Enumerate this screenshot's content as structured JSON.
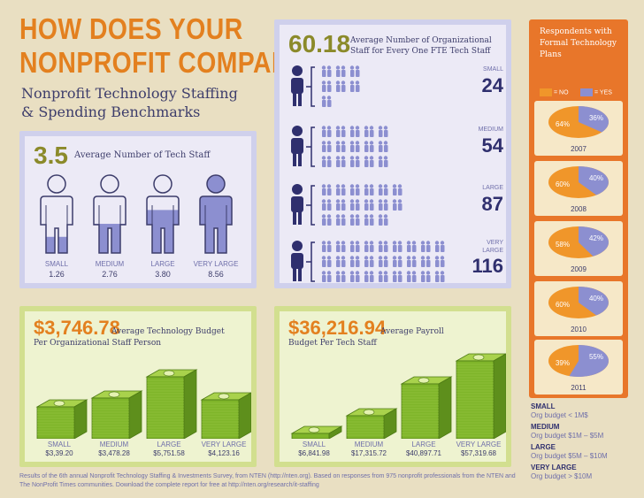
{
  "title": {
    "line1": "HOW DOES YOUR",
    "line2": "NONPROFIT COMPARE?",
    "subtitle1": "Nonprofit Technology Staffing",
    "subtitle2": "& Spending Benchmarks"
  },
  "tech_staff": {
    "value": "3.5",
    "label": "Average Number of Tech Staff",
    "items": [
      {
        "size": "SMALL",
        "value": "1.26",
        "fill": 0.22
      },
      {
        "size": "MEDIUM",
        "value": "2.76",
        "fill": 0.38
      },
      {
        "size": "LARGE",
        "value": "3.80",
        "fill": 0.55
      },
      {
        "size": "VERY LARGE",
        "value": "8.56",
        "fill": 1.0
      }
    ]
  },
  "ratio": {
    "value": "60.18",
    "label": "Average Number of Organizational Staff for Every One FTE Tech Staff",
    "rows": [
      {
        "size": "SMALL",
        "value": "24"
      },
      {
        "size": "MEDIUM",
        "value": "54"
      },
      {
        "size": "LARGE",
        "value": "87"
      },
      {
        "size": "VERY LARGE",
        "value": "116"
      }
    ]
  },
  "plans": {
    "header": "Respondents with Formal Technology Plans",
    "legend_no": "= NO",
    "legend_yes": "= YES",
    "no_color": "#f0962a",
    "yes_color": "#8c8fd0",
    "years": [
      {
        "year": "2007",
        "no": "64%",
        "yes": "36%",
        "yes_frac": 0.36
      },
      {
        "year": "2008",
        "no": "60%",
        "yes": "40%",
        "yes_frac": 0.4
      },
      {
        "year": "2009",
        "no": "58%",
        "yes": "42%",
        "yes_frac": 0.42
      },
      {
        "year": "2010",
        "no": "60%",
        "yes": "40%",
        "yes_frac": 0.4
      },
      {
        "year": "2011",
        "no": "39%",
        "yes": "55%",
        "yes_frac": 0.55
      }
    ]
  },
  "tech_budget": {
    "value": "$3,746.78",
    "label1": "Average Technology Budget",
    "label2": "Per Organizational Staff Person",
    "items": [
      {
        "size": "SMALL",
        "value": "$3,39.20"
      },
      {
        "size": "MEDIUM",
        "value": "$3,478.28"
      },
      {
        "size": "LARGE",
        "value": "$5,751.58"
      },
      {
        "size": "VERY LARGE",
        "value": "$4,123.16"
      }
    ]
  },
  "payroll": {
    "value": "$36,216.94",
    "label1": "Average Payroll",
    "label2": "Budget Per Tech Staff",
    "items": [
      {
        "size": "SMALL",
        "value": "$6,841.98"
      },
      {
        "size": "MEDIUM",
        "value": "$17,315.72"
      },
      {
        "size": "LARGE",
        "value": "$40,897.71"
      },
      {
        "size": "VERY LARGE",
        "value": "$57,319.68"
      }
    ]
  },
  "size_key": [
    {
      "k": "SMALL",
      "v": "Org budget < 1M$"
    },
    {
      "k": "MEDIUM",
      "v": "Org budget $1M – $5M"
    },
    {
      "k": "LARGE",
      "v": "Org budget $5M – $10M"
    },
    {
      "k": "VERY LARGE",
      "v": "Org budget > $10M"
    }
  ],
  "footer": "Results of the 6th annual Nonprofit Technology Staffing & Investments Survey, from NTEN (http://nten.org). Based on responses from 975 nonprofit professionals from the NTEN and The NonProfit Times communities. Download the complete report for free at http://nten.org/research/it-staffing"
}
